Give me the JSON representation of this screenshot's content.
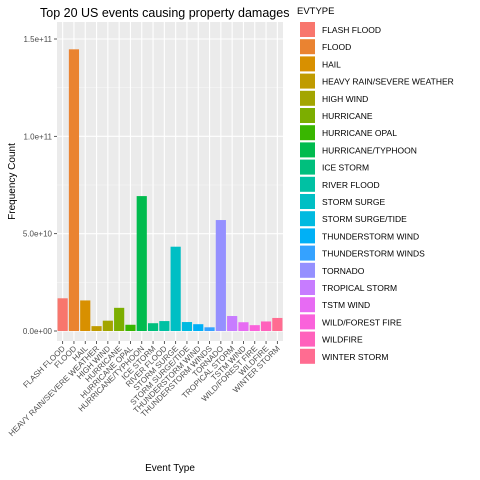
{
  "chart_data": {
    "type": "bar",
    "title": "Top 20 US events causing property damages",
    "xlabel": "Event Type",
    "ylabel": "Frequency Count",
    "ylim": [
      0,
      150000000000
    ],
    "yticks": [
      {
        "value": 0,
        "label": "0.0e+00"
      },
      {
        "value": 50000000000,
        "label": "5.0e+10"
      },
      {
        "value": 100000000000,
        "label": "1.0e+11"
      },
      {
        "value": 150000000000,
        "label": "1.5e+11"
      }
    ],
    "grid": true,
    "legend_position": "right",
    "legend_title": "EVTYPE",
    "categories": [
      "FLASH FLOOD",
      "FLOOD",
      "HAIL",
      "HEAVY RAIN/SEVERE WEATHER",
      "HIGH WIND",
      "HURRICANE",
      "HURRICANE OPAL",
      "HURRICANE/TYPHOON",
      "ICE STORM",
      "RIVER FLOOD",
      "STORM SURGE",
      "STORM SURGE/TIDE",
      "THUNDERSTORM WIND",
      "THUNDERSTORM WINDS",
      "TORNADO",
      "TROPICAL STORM",
      "TSTM WIND",
      "WILD/FOREST FIRE",
      "WILDFIRE",
      "WINTER STORM"
    ],
    "values": [
      16800000000,
      144700000000,
      15700000000,
      2500000000,
      5300000000,
      11900000000,
      3200000000,
      69300000000,
      4000000000,
      5100000000,
      43300000000,
      4600000000,
      3500000000,
      1900000000,
      57000000000,
      7700000000,
      4500000000,
      3000000000,
      4900000000,
      6700000000
    ],
    "colors": [
      "#F8766D",
      "#EA8331",
      "#D89000",
      "#C09B00",
      "#A3A500",
      "#7CAE00",
      "#39B600",
      "#00BB4E",
      "#00BF7D",
      "#00C1A3",
      "#00BFC4",
      "#00BAE0",
      "#00B0F6",
      "#35A2FF",
      "#9590FF",
      "#C77CFF",
      "#E76BF3",
      "#FA62DB",
      "#FF62BC",
      "#FF6C91"
    ]
  }
}
